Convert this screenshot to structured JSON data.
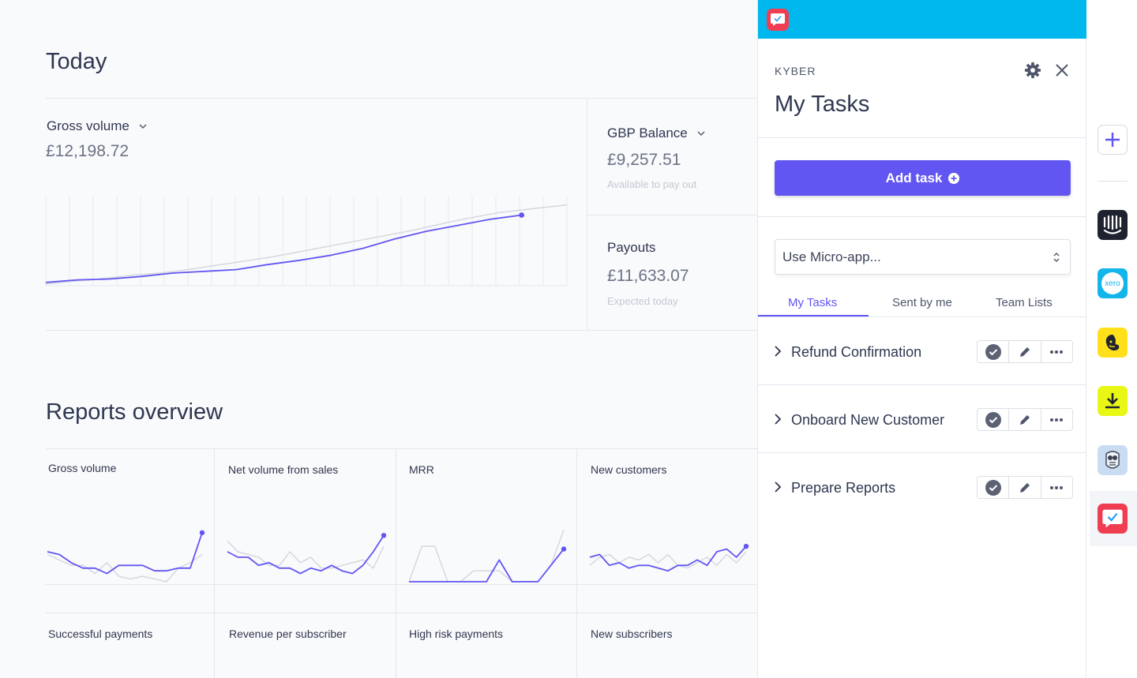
{
  "dashboard": {
    "title": "Today",
    "gross_volume": {
      "label": "Gross volume",
      "value": "£12,198.72"
    },
    "gbp_balance": {
      "label": "GBP Balance",
      "value": "£9,257.51",
      "sub": "Available to pay out"
    },
    "payouts": {
      "label": "Payouts",
      "value": "£11,633.07",
      "sub": "Expected today"
    }
  },
  "reports": {
    "title": "Reports overview",
    "row1": [
      "Gross volume",
      "Net volume from sales",
      "MRR",
      "New customers"
    ],
    "row2": [
      "Successful payments",
      "Revenue per subscriber",
      "High risk payments",
      "New subscribers"
    ]
  },
  "panel": {
    "brand": "KYBER",
    "title": "My Tasks",
    "add_task_label": "Add task",
    "select": {
      "value": "Use Micro-app..."
    },
    "tabs": [
      "My Tasks",
      "Sent by me",
      "Team Lists"
    ],
    "active_tab": "My Tasks",
    "tasks": [
      {
        "name": "Refund Confirmation"
      },
      {
        "name": "Onboard New Customer"
      },
      {
        "name": "Prepare Reports"
      }
    ]
  },
  "rail": {
    "items": [
      "add-icon",
      "intercom-icon",
      "xero-icon",
      "mailchimp-icon",
      "download-icon",
      "owl-icon",
      "kyber-icon"
    ],
    "xero_text": "xero"
  },
  "colors": {
    "accent": "#6256f2",
    "topbar": "#00b8ee",
    "kyber_red": "#ef3e52",
    "line_compare": "#d5d8de"
  },
  "chart_data": [
    {
      "type": "line",
      "title": "Gross volume",
      "series": [
        {
          "name": "today",
          "values": [
            0.02,
            0.05,
            0.06,
            0.09,
            0.13,
            0.15,
            0.17,
            0.23,
            0.28,
            0.34,
            0.42,
            0.53,
            0.62,
            0.69,
            0.76,
            0.81
          ]
        },
        {
          "name": "comparison",
          "values": [
            0.0,
            0.03,
            0.05,
            0.08,
            0.11,
            0.13,
            0.16,
            0.2,
            0.24,
            0.28,
            0.32,
            0.37,
            0.42,
            0.47,
            0.52,
            0.57,
            0.62,
            0.68,
            0.74,
            0.79,
            0.84,
            0.87,
            0.9,
            0.93
          ]
        }
      ]
    },
    {
      "type": "line",
      "title": "Gross volume",
      "series": [
        {
          "name": "current",
          "values": [
            0.55,
            0.5,
            0.35,
            0.25,
            0.25,
            0.15,
            0.3,
            0.3,
            0.3,
            0.2,
            0.2,
            0.25,
            0.25,
            0.9
          ]
        },
        {
          "name": "comparison",
          "values": [
            0.5,
            0.4,
            0.3,
            0.3,
            0.15,
            0.35,
            0.1,
            0.05,
            0.1,
            0.05,
            0.0,
            0.25,
            0.35,
            0.5
          ]
        }
      ]
    },
    {
      "type": "line",
      "title": "Net volume from sales",
      "series": [
        {
          "name": "current",
          "values": [
            0.55,
            0.45,
            0.45,
            0.3,
            0.35,
            0.25,
            0.25,
            0.15,
            0.25,
            0.2,
            0.3,
            0.2,
            0.15,
            0.3,
            0.55,
            0.85
          ]
        },
        {
          "name": "comparison",
          "values": [
            0.75,
            0.55,
            0.5,
            0.45,
            0.3,
            0.3,
            0.55,
            0.35,
            0.45,
            0.25,
            0.25,
            0.3,
            0.35,
            0.4,
            0.25,
            0.65
          ]
        }
      ]
    },
    {
      "type": "line",
      "title": "MRR",
      "series": [
        {
          "name": "current",
          "values": [
            0.0,
            0.0,
            0.0,
            0.0,
            0.0,
            0.0,
            0.0,
            0.4,
            0.0,
            0.0,
            0.0,
            0.3,
            0.6
          ]
        },
        {
          "name": "comparison",
          "values": [
            0.0,
            0.65,
            0.65,
            0.0,
            0.0,
            0.2,
            0.2,
            0.2,
            0.0,
            0.0,
            0.0,
            0.3,
            0.95
          ]
        }
      ]
    },
    {
      "type": "line",
      "title": "New customers",
      "series": [
        {
          "name": "current",
          "values": [
            0.45,
            0.5,
            0.3,
            0.35,
            0.25,
            0.3,
            0.3,
            0.25,
            0.2,
            0.3,
            0.3,
            0.4,
            0.3,
            0.55,
            0.6,
            0.45,
            0.65
          ]
        },
        {
          "name": "comparison",
          "values": [
            0.3,
            0.45,
            0.5,
            0.35,
            0.45,
            0.4,
            0.5,
            0.35,
            0.5,
            0.3,
            0.25,
            0.35,
            0.45,
            0.3,
            0.5,
            0.35,
            0.55
          ]
        }
      ]
    }
  ]
}
